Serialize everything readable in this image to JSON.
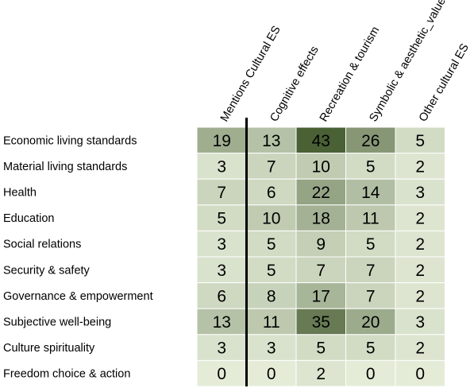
{
  "chart_data": {
    "type": "heatmap",
    "columns": [
      "Mentions Cultural ES",
      "Cognitive effects",
      "Recreation & tourism",
      "Symbolic & aesthetic_values",
      "Other cultural ES"
    ],
    "rows": [
      "Economic living standards",
      "Material living standards",
      "Health",
      "Education",
      "Social relations",
      "Security & safety",
      "Governance & empowerment",
      "Subjective well-being",
      "Culture spirituality",
      "Freedom choice & action"
    ],
    "values": [
      [
        19,
        13,
        43,
        26,
        5
      ],
      [
        3,
        7,
        10,
        5,
        2
      ],
      [
        7,
        6,
        22,
        14,
        3
      ],
      [
        5,
        10,
        18,
        11,
        2
      ],
      [
        3,
        5,
        9,
        5,
        2
      ],
      [
        3,
        5,
        7,
        7,
        2
      ],
      [
        6,
        8,
        17,
        7,
        2
      ],
      [
        13,
        11,
        35,
        20,
        3
      ],
      [
        3,
        3,
        5,
        5,
        2
      ],
      [
        0,
        0,
        2,
        0,
        0
      ]
    ],
    "color_min": "#e4ecd8",
    "color_max": "#4a6035",
    "separator_after_column": 0,
    "separator_color": "#000000"
  }
}
